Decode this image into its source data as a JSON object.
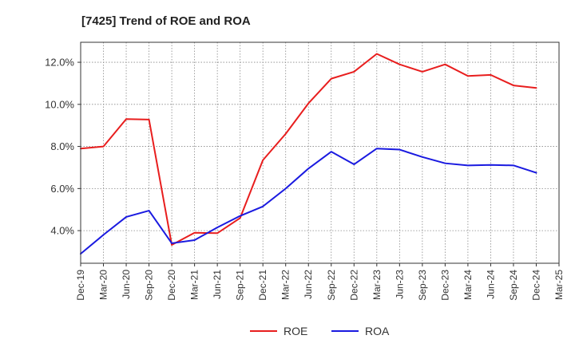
{
  "chart_data": {
    "type": "line",
    "title": "[7425]  Trend of ROE and ROA",
    "x": [
      "Dec-19",
      "Mar-20",
      "Jun-20",
      "Sep-20",
      "Dec-20",
      "Mar-21",
      "Jun-21",
      "Sep-21",
      "Dec-21",
      "Mar-22",
      "Jun-22",
      "Sep-22",
      "Dec-22",
      "Mar-23",
      "Jun-23",
      "Sep-23",
      "Dec-23",
      "Mar-24",
      "Jun-24",
      "Sep-24",
      "Dec-24",
      "Mar-25"
    ],
    "y_ticks": [
      {
        "value": 4.0,
        "label": "4.0%"
      },
      {
        "value": 6.0,
        "label": "6.0%"
      },
      {
        "value": 8.0,
        "label": "8.0%"
      },
      {
        "value": 10.0,
        "label": "10.0%"
      },
      {
        "value": 12.0,
        "label": "12.0%"
      }
    ],
    "ylim": [
      2.45,
      12.95
    ],
    "grid": true,
    "legend_position": "bottom-center",
    "series": [
      {
        "name": "ROE",
        "color": "#e81e1e",
        "values": [
          7.9,
          8.0,
          9.3,
          9.28,
          3.32,
          3.9,
          3.88,
          4.6,
          7.35,
          8.6,
          10.05,
          11.22,
          11.55,
          12.4,
          11.9,
          11.55,
          11.9,
          11.35,
          11.4,
          10.9,
          10.78,
          null
        ]
      },
      {
        "name": "ROA",
        "color": "#1a1ae0",
        "values": [
          2.9,
          3.8,
          4.65,
          4.95,
          3.4,
          3.55,
          4.15,
          4.7,
          5.15,
          6.0,
          6.95,
          7.75,
          7.15,
          7.9,
          7.85,
          7.5,
          7.2,
          7.1,
          7.12,
          7.1,
          6.75,
          null
        ]
      }
    ]
  }
}
